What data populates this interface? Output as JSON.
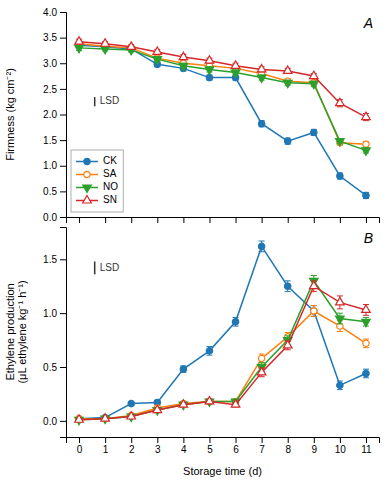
{
  "chart_data": [
    {
      "type": "line",
      "x": [
        0,
        1,
        2,
        3,
        4,
        5,
        6,
        7,
        8,
        9,
        10,
        11
      ],
      "ylabel": "Firmness (kg cm⁻²)",
      "panel_label": "A",
      "series": [
        {
          "name": "CK",
          "marker": "circle",
          "values": [
            3.35,
            3.32,
            3.28,
            2.98,
            2.9,
            2.72,
            2.72,
            1.82,
            1.48,
            1.65,
            0.8,
            0.42
          ],
          "errors": [
            0.05,
            0.04,
            0.04,
            0.05,
            0.05,
            0.05,
            0.05,
            0.06,
            0.06,
            0.06,
            0.06,
            0.06
          ]
        },
        {
          "name": "SA",
          "marker": "circle-open",
          "values": [
            3.38,
            3.33,
            3.3,
            3.1,
            3.0,
            2.95,
            2.9,
            2.8,
            2.65,
            2.62,
            1.45,
            1.42
          ],
          "errors": [
            0.05,
            0.04,
            0.04,
            0.05,
            0.05,
            0.05,
            0.05,
            0.05,
            0.05,
            0.05,
            0.05,
            0.05
          ]
        },
        {
          "name": "NO",
          "marker": "triangle-down",
          "values": [
            3.3,
            3.28,
            3.26,
            3.08,
            2.95,
            2.88,
            2.82,
            2.72,
            2.62,
            2.6,
            1.48,
            1.3
          ],
          "errors": [
            0.05,
            0.04,
            0.04,
            0.05,
            0.05,
            0.05,
            0.05,
            0.05,
            0.05,
            0.05,
            0.05,
            0.05
          ]
        },
        {
          "name": "SN",
          "marker": "triangle-up-open",
          "values": [
            3.42,
            3.38,
            3.32,
            3.22,
            3.12,
            3.05,
            2.95,
            2.88,
            2.85,
            2.75,
            2.22,
            1.95
          ],
          "errors": [
            0.05,
            0.04,
            0.04,
            0.05,
            0.05,
            0.05,
            0.05,
            0.05,
            0.05,
            0.05,
            0.07,
            0.07
          ]
        }
      ],
      "lsd": {
        "label": "LSD",
        "x": 0.6,
        "y": 2.25,
        "value": 0.18
      },
      "xlim": [
        -0.5,
        11.5
      ],
      "xticks": [
        0,
        1,
        2,
        3,
        4,
        5,
        6,
        7,
        8,
        9,
        10,
        11
      ],
      "ylim": [
        0.0,
        4.0
      ],
      "yticks": [
        {
          "value": 0.0,
          "label": "0.0"
        },
        0.5,
        {
          "value": 1.0,
          "label": "1.0"
        },
        1.5,
        {
          "value": 2.0,
          "label": "2.0"
        },
        2.5,
        {
          "value": 3.0,
          "label": "3.0"
        },
        3.5,
        {
          "value": 4.0,
          "label": "4.0"
        }
      ],
      "tick_labels": "y",
      "legend": "lower left"
    },
    {
      "type": "line",
      "x": [
        0,
        1,
        2,
        3,
        4,
        5,
        6,
        7,
        8,
        9,
        10,
        11
      ],
      "xlabel": "Storage time (d)",
      "ylabel": "Ethylene production\n(μL ethylene kg⁻¹ h⁻¹)",
      "panel_label": "B",
      "series": [
        {
          "name": "CK",
          "marker": "circle",
          "values": [
            0.02,
            0.03,
            0.16,
            0.17,
            0.48,
            0.65,
            0.92,
            1.62,
            1.25,
            1.02,
            0.33,
            0.44
          ],
          "errors": [
            0.01,
            0.02,
            0.02,
            0.02,
            0.03,
            0.04,
            0.04,
            0.05,
            0.05,
            0.05,
            0.04,
            0.04
          ]
        },
        {
          "name": "SA",
          "marker": "circle-open",
          "values": [
            0.02,
            0.02,
            0.05,
            0.12,
            0.16,
            0.18,
            0.18,
            0.58,
            0.78,
            1.02,
            0.88,
            0.72
          ],
          "errors": [
            0.01,
            0.01,
            0.01,
            0.02,
            0.02,
            0.02,
            0.02,
            0.04,
            0.04,
            0.05,
            0.05,
            0.04
          ]
        },
        {
          "name": "NO",
          "marker": "triangle-down",
          "values": [
            0.01,
            0.02,
            0.04,
            0.1,
            0.15,
            0.18,
            0.18,
            0.5,
            0.75,
            1.3,
            0.95,
            0.92
          ],
          "errors": [
            0.01,
            0.01,
            0.01,
            0.02,
            0.02,
            0.02,
            0.02,
            0.04,
            0.04,
            0.05,
            0.05,
            0.04
          ]
        },
        {
          "name": "SN",
          "marker": "triangle-up-open",
          "values": [
            0.01,
            0.02,
            0.04,
            0.1,
            0.15,
            0.18,
            0.15,
            0.45,
            0.7,
            1.25,
            1.1,
            1.03
          ],
          "errors": [
            0.01,
            0.01,
            0.01,
            0.02,
            0.02,
            0.02,
            0.02,
            0.04,
            0.04,
            0.05,
            0.06,
            0.05
          ]
        }
      ],
      "lsd": {
        "label": "LSD",
        "x": 0.6,
        "y": 1.42,
        "value": 0.12
      },
      "xlim": [
        -0.5,
        11.5
      ],
      "xticks": [
        0,
        1,
        2,
        3,
        4,
        5,
        6,
        7,
        8,
        9,
        10,
        11
      ],
      "ylim": [
        -0.15,
        1.8
      ],
      "yticks": [
        {
          "value": 0.0,
          "label": "0.0"
        },
        0.5,
        {
          "value": 1.0,
          "label": "1.0"
        },
        1.5
      ]
    }
  ]
}
